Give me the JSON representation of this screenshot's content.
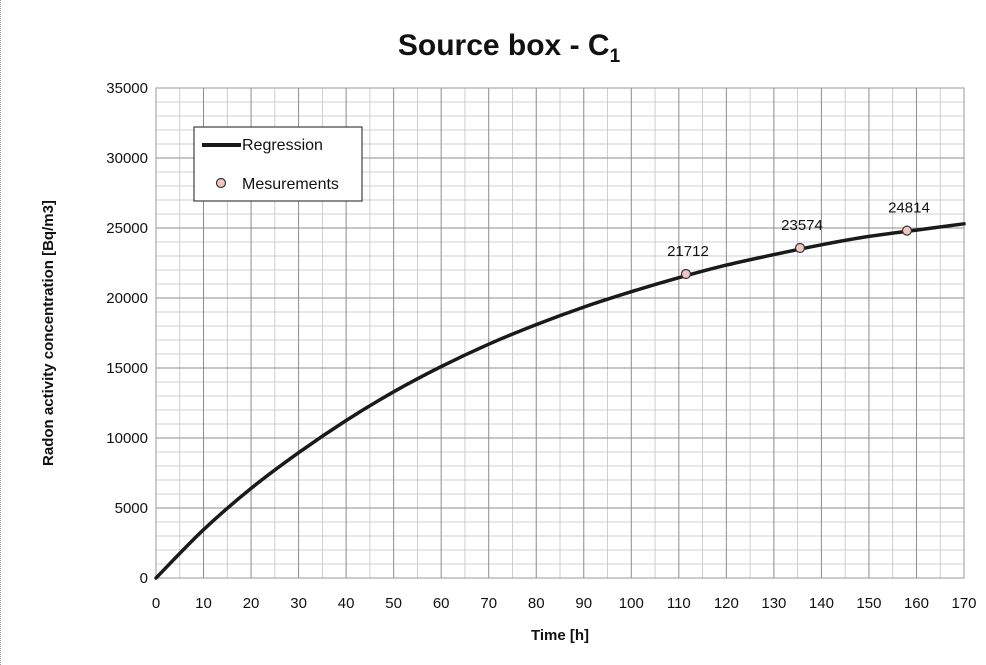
{
  "chart_data": {
    "type": "line",
    "title": "Source box - C",
    "title_subscript": "1",
    "xlabel": "Time [h]",
    "ylabel": "Radon activity concentration [Bq/m3]",
    "xlim": [
      0,
      170
    ],
    "ylim": [
      0,
      35000
    ],
    "x_ticks": [
      0,
      10,
      20,
      30,
      40,
      50,
      60,
      70,
      80,
      90,
      100,
      110,
      120,
      130,
      140,
      150,
      160,
      170
    ],
    "y_ticks": [
      0,
      5000,
      10000,
      15000,
      20000,
      25000,
      30000,
      35000
    ],
    "x_tick_labels": [
      "0",
      "10",
      "20",
      "30",
      "40",
      "50",
      "60",
      "70",
      "80",
      "90",
      "100",
      "110",
      "120",
      "130",
      "140",
      "150",
      "160",
      "170"
    ],
    "y_tick_labels": [
      "0",
      "5000",
      "10000",
      "15000",
      "20000",
      "25000",
      "30000",
      "35000"
    ],
    "grid": true,
    "legend_position": "top-left",
    "series": [
      {
        "name": "Regression",
        "kind": "line",
        "color": "#1a1a1a",
        "x": [
          0,
          10,
          20,
          30,
          40,
          50,
          60,
          70,
          80,
          90,
          100,
          110,
          120,
          130,
          140,
          150,
          160,
          170
        ],
        "y": [
          0,
          3450,
          6400,
          8950,
          11250,
          13300,
          15100,
          16700,
          18100,
          19350,
          20450,
          21450,
          22350,
          23100,
          23800,
          24400,
          24850,
          25300
        ]
      },
      {
        "name": "Mesurements",
        "kind": "scatter",
        "color": "#f2c4c4",
        "edge_color": "#333333",
        "x": [
          111.5,
          135.5,
          158
        ],
        "y": [
          21712,
          23574,
          24814
        ],
        "labels": [
          "21712",
          "23574",
          "24814"
        ]
      }
    ]
  }
}
